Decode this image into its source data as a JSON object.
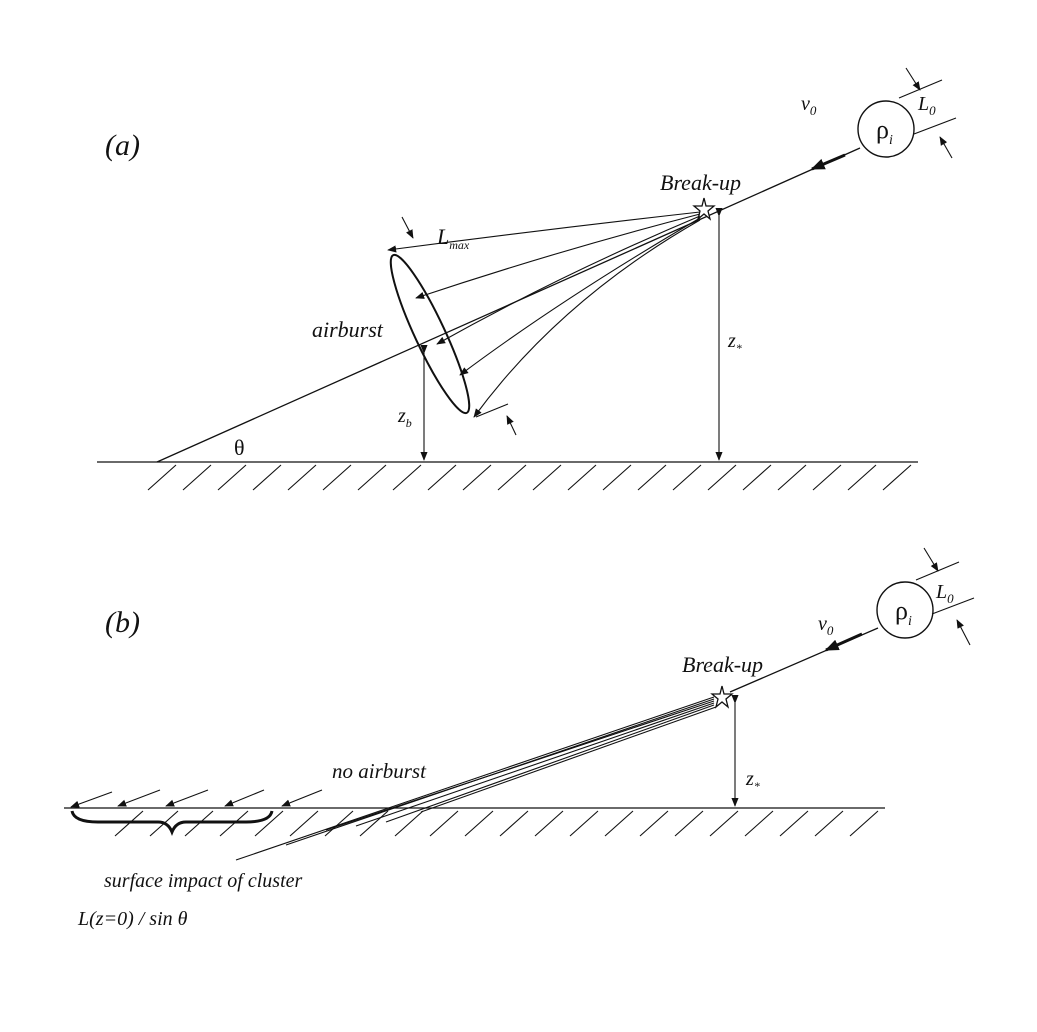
{
  "panel_a": {
    "label": "(a)",
    "velocity_label": "v",
    "velocity_sub": "0",
    "density_label": "ρ",
    "density_sub": "i",
    "size_label": "L",
    "size_sub": "0",
    "breakup_label": "Break-up",
    "lmax_label": "L",
    "lmax_sub": "max",
    "airburst_label": "airburst",
    "zstar_label": "z",
    "zstar_sub": "*",
    "zb_label": "z",
    "zb_sub": "b",
    "theta_label": "θ"
  },
  "panel_b": {
    "label": "(b)",
    "velocity_label": "v",
    "velocity_sub": "0",
    "density_label": "ρ",
    "density_sub": "i",
    "size_label": "L",
    "size_sub": "0",
    "breakup_label": "Break-up",
    "no_airburst_label": "no airburst",
    "zstar_label": "z",
    "zstar_sub": "*",
    "surface_impact_label": "surface impact of cluster",
    "footprint_label": "L(z=0) / sin θ"
  }
}
